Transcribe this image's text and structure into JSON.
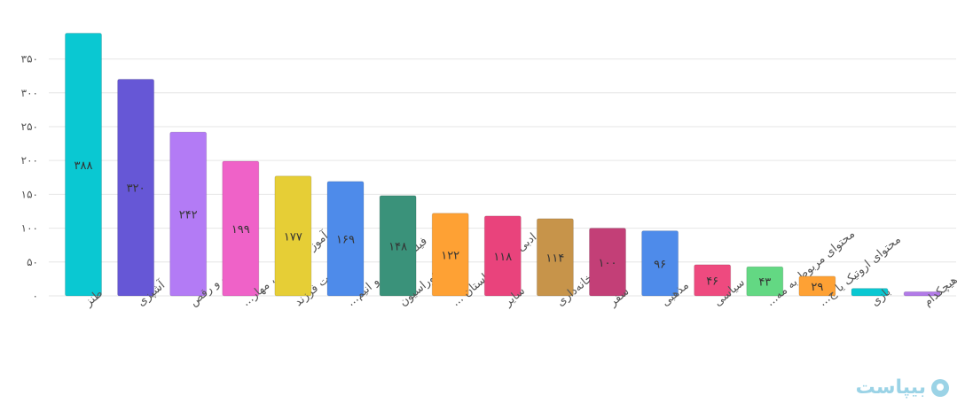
{
  "chart_data": {
    "type": "bar",
    "categories": [
      "طنز",
      "آشپزی",
      "موسیقی و رقص",
      "آموزشی (زبان، مهار...",
      "تربیت فرزند",
      "فیلم، سریال و انیم...",
      "دکوراسیون",
      "ادبی (شعر، داستان ...",
      "سایر",
      "خانه‌داری",
      "سفر",
      "مذهبی",
      "سیاسی",
      "محتوای مربوط به مه...",
      "محتوای اروتیک یا ج...",
      "بازی",
      "هیچکدام"
    ],
    "values": [
      388,
      320,
      242,
      199,
      177,
      169,
      148,
      122,
      118,
      114,
      100,
      96,
      46,
      43,
      29,
      11,
      6
    ],
    "value_labels": [
      "۳۸۸",
      "۳۲۰",
      "۲۴۲",
      "۱۹۹",
      "۱۷۷",
      "۱۶۹",
      "۱۴۸",
      "۱۲۲",
      "۱۱۸",
      "۱۱۴",
      "۱۰۰",
      "۹۶",
      "۴۶",
      "۴۳",
      "۲۹",
      "",
      ""
    ],
    "colors": [
      "#0ac8d2",
      "#6657d6",
      "#b37bf5",
      "#ef62c8",
      "#e6ce36",
      "#4e8bea",
      "#3a927a",
      "#fea134",
      "#e9437c",
      "#c7944a",
      "#c33f77",
      "#4e8bea",
      "#ee4a7f",
      "#63d883",
      "#fea134",
      "#0ac8d2",
      "#b27ae8"
    ],
    "yticks": [
      0,
      50,
      100,
      150,
      200,
      250,
      300,
      350
    ],
    "ytick_labels": [
      "۰",
      "۵۰",
      "۱۰۰",
      "۱۵۰",
      "۲۰۰",
      "۲۵۰",
      "۳۰۰",
      "۳۵۰"
    ],
    "ylim": [
      0,
      390
    ],
    "grid": true,
    "title": "",
    "xlabel": "",
    "ylabel": ""
  },
  "watermark": {
    "text": "بیپاست",
    "icon": "logo-icon"
  }
}
